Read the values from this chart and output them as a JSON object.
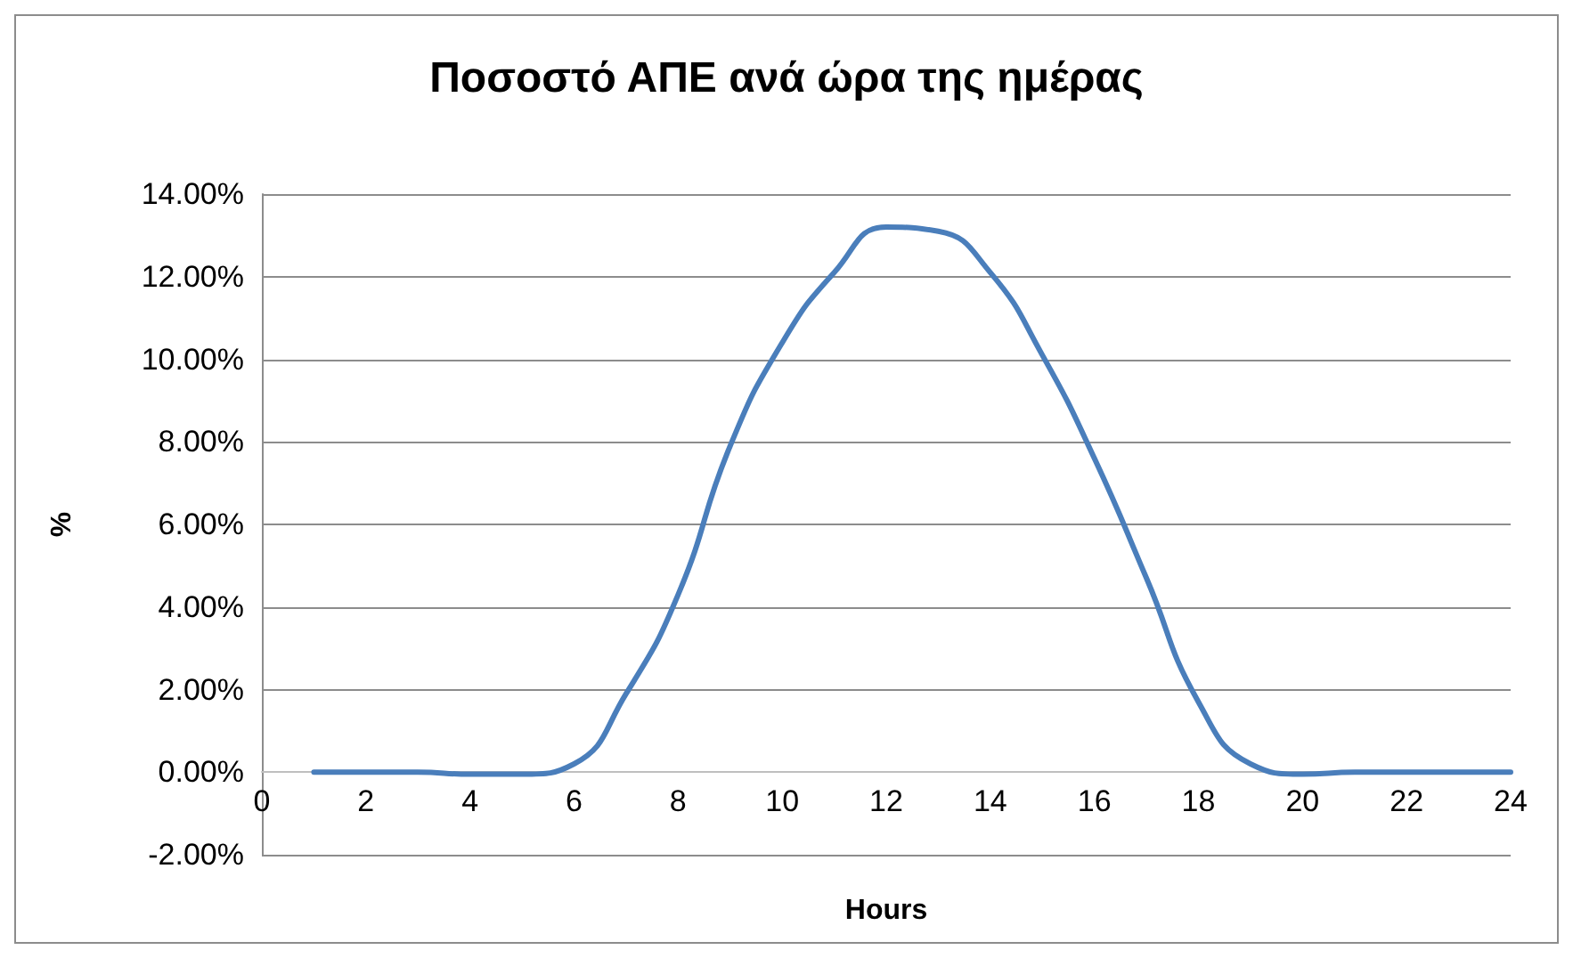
{
  "chart_data": {
    "type": "line",
    "title": "Ποσοστό ΑΠΕ ανά ώρα της ημέρας",
    "xlabel": "Hours",
    "ylabel": "%",
    "x": [
      1,
      2,
      3,
      4,
      5,
      6,
      7,
      8,
      9,
      10,
      11,
      12,
      13,
      14,
      15,
      16,
      17,
      18,
      19,
      20,
      21,
      22,
      23,
      24
    ],
    "series": [
      {
        "color": "#4a7ebb",
        "values": [
          0,
          0,
          0,
          -0.05,
          -0.05,
          0.2,
          1.9,
          4.3,
          7.9,
          10.4,
          12.1,
          13.2,
          13.1,
          12.1,
          10.1,
          7.6,
          4.7,
          1.7,
          0.2,
          -0.05,
          0,
          0,
          0,
          0
        ]
      }
    ],
    "xlim": [
      0,
      24
    ],
    "xticks": [
      0,
      2,
      4,
      6,
      8,
      10,
      12,
      14,
      16,
      18,
      20,
      22,
      24
    ],
    "ylim": [
      -2,
      14
    ],
    "yticks": [
      {
        "value": -2,
        "label": "-2.00%"
      },
      {
        "value": 0,
        "label": "0.00%"
      },
      {
        "value": 2,
        "label": "2.00%"
      },
      {
        "value": 4,
        "label": "4.00%"
      },
      {
        "value": 6,
        "label": "6.00%"
      },
      {
        "value": 8,
        "label": "8.00%"
      },
      {
        "value": 10,
        "label": "10.00%"
      },
      {
        "value": 12,
        "label": "12.00%"
      },
      {
        "value": 14,
        "label": "14.00%"
      }
    ],
    "grid": "y",
    "marker": "none",
    "line_style": "solid"
  }
}
